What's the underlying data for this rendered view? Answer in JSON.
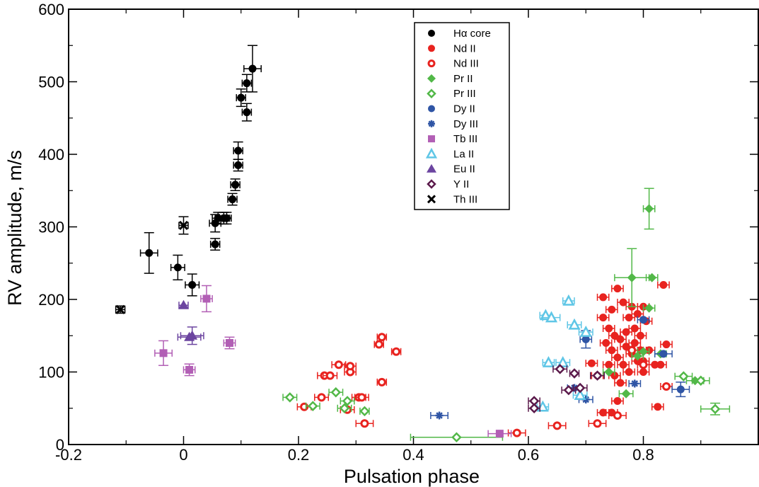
{
  "chart_data": {
    "type": "scatter",
    "title": "",
    "xlabel": "Pulsation phase",
    "ylabel": "RV amplitude, m/s",
    "xlim": [
      -0.2,
      1.0
    ],
    "ylim": [
      0,
      600
    ],
    "x_ticks": [
      -0.2,
      0,
      0.2,
      0.4,
      0.6,
      0.8
    ],
    "x_tick_labels": [
      "-0.2",
      "0",
      "0.2",
      "0.4",
      "0.6",
      "0.8"
    ],
    "y_ticks": [
      0,
      100,
      200,
      300,
      400,
      500,
      600
    ],
    "y_tick_labels": [
      "0",
      "100",
      "200",
      "300",
      "400",
      "500",
      "600"
    ],
    "grid": false,
    "legend_position": "top-center",
    "series": [
      {
        "name": "Hα core",
        "color": "#000000",
        "marker": "circle-filled",
        "points": [
          [
            -0.06,
            264,
            0.015,
            28
          ],
          [
            -0.01,
            244,
            0.012,
            17
          ],
          [
            0.015,
            220,
            0.012,
            15
          ],
          [
            0.055,
            276,
            0.008,
            8
          ],
          [
            0.055,
            305,
            0.01,
            12
          ],
          [
            0.06,
            312,
            0.01,
            8
          ],
          [
            0.07,
            312,
            0.01,
            8
          ],
          [
            0.075,
            312,
            0.008,
            8
          ],
          [
            0.085,
            338,
            0.008,
            8
          ],
          [
            0.09,
            358,
            0.008,
            8
          ],
          [
            0.095,
            385,
            0.008,
            8
          ],
          [
            0.095,
            405,
            0.008,
            12
          ],
          [
            0.1,
            478,
            0.008,
            12
          ],
          [
            0.11,
            458,
            0.008,
            12
          ],
          [
            0.11,
            498,
            0.008,
            12
          ],
          [
            0.12,
            518,
            0.015,
            32
          ]
        ]
      },
      {
        "name": "Nd II",
        "color": "#e8231f",
        "marker": "circle-filled",
        "points": [
          [
            0.73,
            203,
            0.01,
            0
          ],
          [
            0.745,
            186,
            0.01,
            0
          ],
          [
            0.755,
            215,
            0.01,
            0
          ],
          [
            0.765,
            196,
            0.01,
            0
          ],
          [
            0.775,
            175,
            0.01,
            0
          ],
          [
            0.78,
            190,
            0.01,
            0
          ],
          [
            0.785,
            160,
            0.01,
            0
          ],
          [
            0.79,
            180,
            0.01,
            0
          ],
          [
            0.795,
            150,
            0.01,
            0
          ],
          [
            0.8,
            190,
            0.01,
            0
          ],
          [
            0.805,
            170,
            0.01,
            0
          ],
          [
            0.73,
            175,
            0.01,
            0
          ],
          [
            0.735,
            140,
            0.01,
            0
          ],
          [
            0.74,
            160,
            0.01,
            0
          ],
          [
            0.745,
            130,
            0.01,
            0
          ],
          [
            0.75,
            150,
            0.01,
            0
          ],
          [
            0.755,
            120,
            0.01,
            0
          ],
          [
            0.76,
            145,
            0.01,
            0
          ],
          [
            0.765,
            110,
            0.01,
            0
          ],
          [
            0.77,
            135,
            0.01,
            0
          ],
          [
            0.775,
            100,
            0.01,
            0
          ],
          [
            0.78,
            125,
            0.01,
            0
          ],
          [
            0.785,
            140,
            0.01,
            0
          ],
          [
            0.79,
            115,
            0.01,
            0
          ],
          [
            0.795,
            130,
            0.01,
            0
          ],
          [
            0.8,
            100,
            0.01,
            0
          ],
          [
            0.74,
            110,
            0.01,
            0
          ],
          [
            0.75,
            95,
            0.01,
            0
          ],
          [
            0.76,
            85,
            0.01,
            0
          ],
          [
            0.755,
            60,
            0.01,
            0
          ],
          [
            0.745,
            44,
            0.01,
            0
          ],
          [
            0.73,
            44,
            0.01,
            0
          ],
          [
            0.71,
            112,
            0.01,
            0
          ],
          [
            0.72,
            95,
            0.01,
            0
          ],
          [
            0.77,
            155,
            0.01,
            0
          ],
          [
            0.81,
            130,
            0.01,
            0
          ],
          [
            0.82,
            110,
            0.01,
            0
          ],
          [
            0.83,
            110,
            0.01,
            0
          ],
          [
            0.835,
            220,
            0.01,
            0
          ],
          [
            0.84,
            138,
            0.01,
            0
          ],
          [
            0.825,
            52,
            0.01,
            0
          ],
          [
            0.8,
            115,
            0.01,
            0
          ]
        ]
      },
      {
        "name": "Nd III",
        "color": "#e8231f",
        "marker": "circle-open",
        "points": [
          [
            0.21,
            52,
            0.012,
            0
          ],
          [
            0.24,
            65,
            0.012,
            0
          ],
          [
            0.245,
            95,
            0.012,
            0
          ],
          [
            0.255,
            95,
            0.012,
            0
          ],
          [
            0.27,
            110,
            0.012,
            0
          ],
          [
            0.285,
            48,
            0.012,
            0
          ],
          [
            0.29,
            100,
            0.01,
            0
          ],
          [
            0.29,
            108,
            0.01,
            0
          ],
          [
            0.305,
            65,
            0.012,
            0
          ],
          [
            0.31,
            65,
            0.012,
            0
          ],
          [
            0.315,
            29,
            0.015,
            0
          ],
          [
            0.34,
            138,
            0.008,
            0
          ],
          [
            0.345,
            148,
            0.008,
            0
          ],
          [
            0.345,
            86,
            0.008,
            0
          ],
          [
            0.37,
            128,
            0.008,
            0
          ],
          [
            0.58,
            16,
            0.015,
            0
          ],
          [
            0.65,
            26,
            0.015,
            0
          ],
          [
            0.72,
            29,
            0.015,
            0
          ],
          [
            0.755,
            40,
            0.015,
            0
          ],
          [
            0.8,
            110,
            0.01,
            0
          ],
          [
            0.78,
            130,
            0.01,
            0
          ],
          [
            0.84,
            80,
            0.01,
            0
          ]
        ]
      },
      {
        "name": "Pr II",
        "color": "#52b848",
        "marker": "diamond-filled",
        "points": [
          [
            0.81,
            325,
            0.01,
            28
          ],
          [
            0.78,
            230,
            0.03,
            40
          ],
          [
            0.815,
            230,
            0.01,
            0
          ],
          [
            0.81,
            188,
            0.01,
            0
          ],
          [
            0.77,
            70,
            0.012,
            0
          ],
          [
            0.8,
            128,
            0.01,
            0
          ],
          [
            0.83,
            125,
            0.01,
            0
          ],
          [
            0.89,
            88,
            0.015,
            0
          ],
          [
            0.74,
            100,
            0.01,
            0
          ],
          [
            0.79,
            122,
            0.01,
            0
          ]
        ]
      },
      {
        "name": "Pr III",
        "color": "#52b848",
        "marker": "diamond-open",
        "points": [
          [
            0.185,
            65,
            0.012,
            0
          ],
          [
            0.225,
            53,
            0.012,
            0
          ],
          [
            0.265,
            72,
            0.012,
            0
          ],
          [
            0.28,
            50,
            0.012,
            0
          ],
          [
            0.285,
            60,
            0.012,
            0
          ],
          [
            0.315,
            46,
            0.008,
            0
          ],
          [
            0.475,
            10,
            0.08,
            0
          ],
          [
            0.87,
            94,
            0.015,
            0
          ],
          [
            0.9,
            88,
            0.015,
            0
          ],
          [
            0.925,
            49,
            0.025,
            8
          ]
        ]
      },
      {
        "name": "Dy II",
        "color": "#2f55a5",
        "marker": "circle-filled",
        "points": [
          [
            0.7,
            145,
            0.01,
            12
          ],
          [
            0.8,
            172,
            0.01,
            0
          ],
          [
            0.835,
            125,
            0.015,
            0
          ],
          [
            0.865,
            76,
            0.015,
            10
          ]
        ]
      },
      {
        "name": "Dy III",
        "color": "#2f55a5",
        "marker": "asterisk",
        "points": [
          [
            0.445,
            40,
            0.015,
            0
          ],
          [
            0.68,
            78,
            0.012,
            0
          ],
          [
            0.785,
            84,
            0.01,
            0
          ],
          [
            0.7,
            62,
            0.012,
            0
          ]
        ]
      },
      {
        "name": "Tb III",
        "color": "#b25fb5",
        "marker": "square-filled",
        "points": [
          [
            -0.035,
            126,
            0.015,
            17
          ],
          [
            0.04,
            201,
            0.01,
            18
          ],
          [
            0.01,
            103,
            0.01,
            8
          ],
          [
            0.08,
            140,
            0.01,
            8
          ],
          [
            0.55,
            15,
            0.02,
            0
          ]
        ]
      },
      {
        "name": "La II",
        "color": "#5fc6e6",
        "marker": "triangle-open",
        "points": [
          [
            0.63,
            178,
            0.01,
            0
          ],
          [
            0.64,
            175,
            0.015,
            0
          ],
          [
            0.67,
            198,
            0.01,
            0
          ],
          [
            0.68,
            165,
            0.012,
            0
          ],
          [
            0.7,
            155,
            0.012,
            0
          ],
          [
            0.635,
            113,
            0.01,
            0
          ],
          [
            0.66,
            113,
            0.012,
            0
          ],
          [
            0.69,
            68,
            0.012,
            0
          ],
          [
            0.625,
            52,
            0.01,
            0
          ]
        ]
      },
      {
        "name": "Eu II",
        "color": "#6c45a0",
        "marker": "triangle-filled",
        "points": [
          [
            0.0,
            192,
            0.008,
            0
          ],
          [
            0.01,
            148,
            0.02,
            0
          ],
          [
            0.015,
            150,
            0.02,
            12
          ]
        ]
      },
      {
        "name": "Y  II",
        "color": "#5b1a4b",
        "marker": "diamond-open",
        "points": [
          [
            0.61,
            60,
            0.01,
            0
          ],
          [
            0.61,
            50,
            0.01,
            0
          ],
          [
            0.655,
            104,
            0.012,
            0
          ],
          [
            0.67,
            75,
            0.012,
            0
          ],
          [
            0.68,
            98,
            0.008,
            0
          ],
          [
            0.69,
            78,
            0.012,
            0
          ],
          [
            0.72,
            95,
            0.012,
            0
          ]
        ]
      },
      {
        "name": "Th III",
        "color": "#000000",
        "marker": "cross",
        "points": [
          [
            -0.11,
            186,
            0.008,
            5
          ],
          [
            0.0,
            302,
            0.008,
            12
          ]
        ]
      }
    ]
  }
}
